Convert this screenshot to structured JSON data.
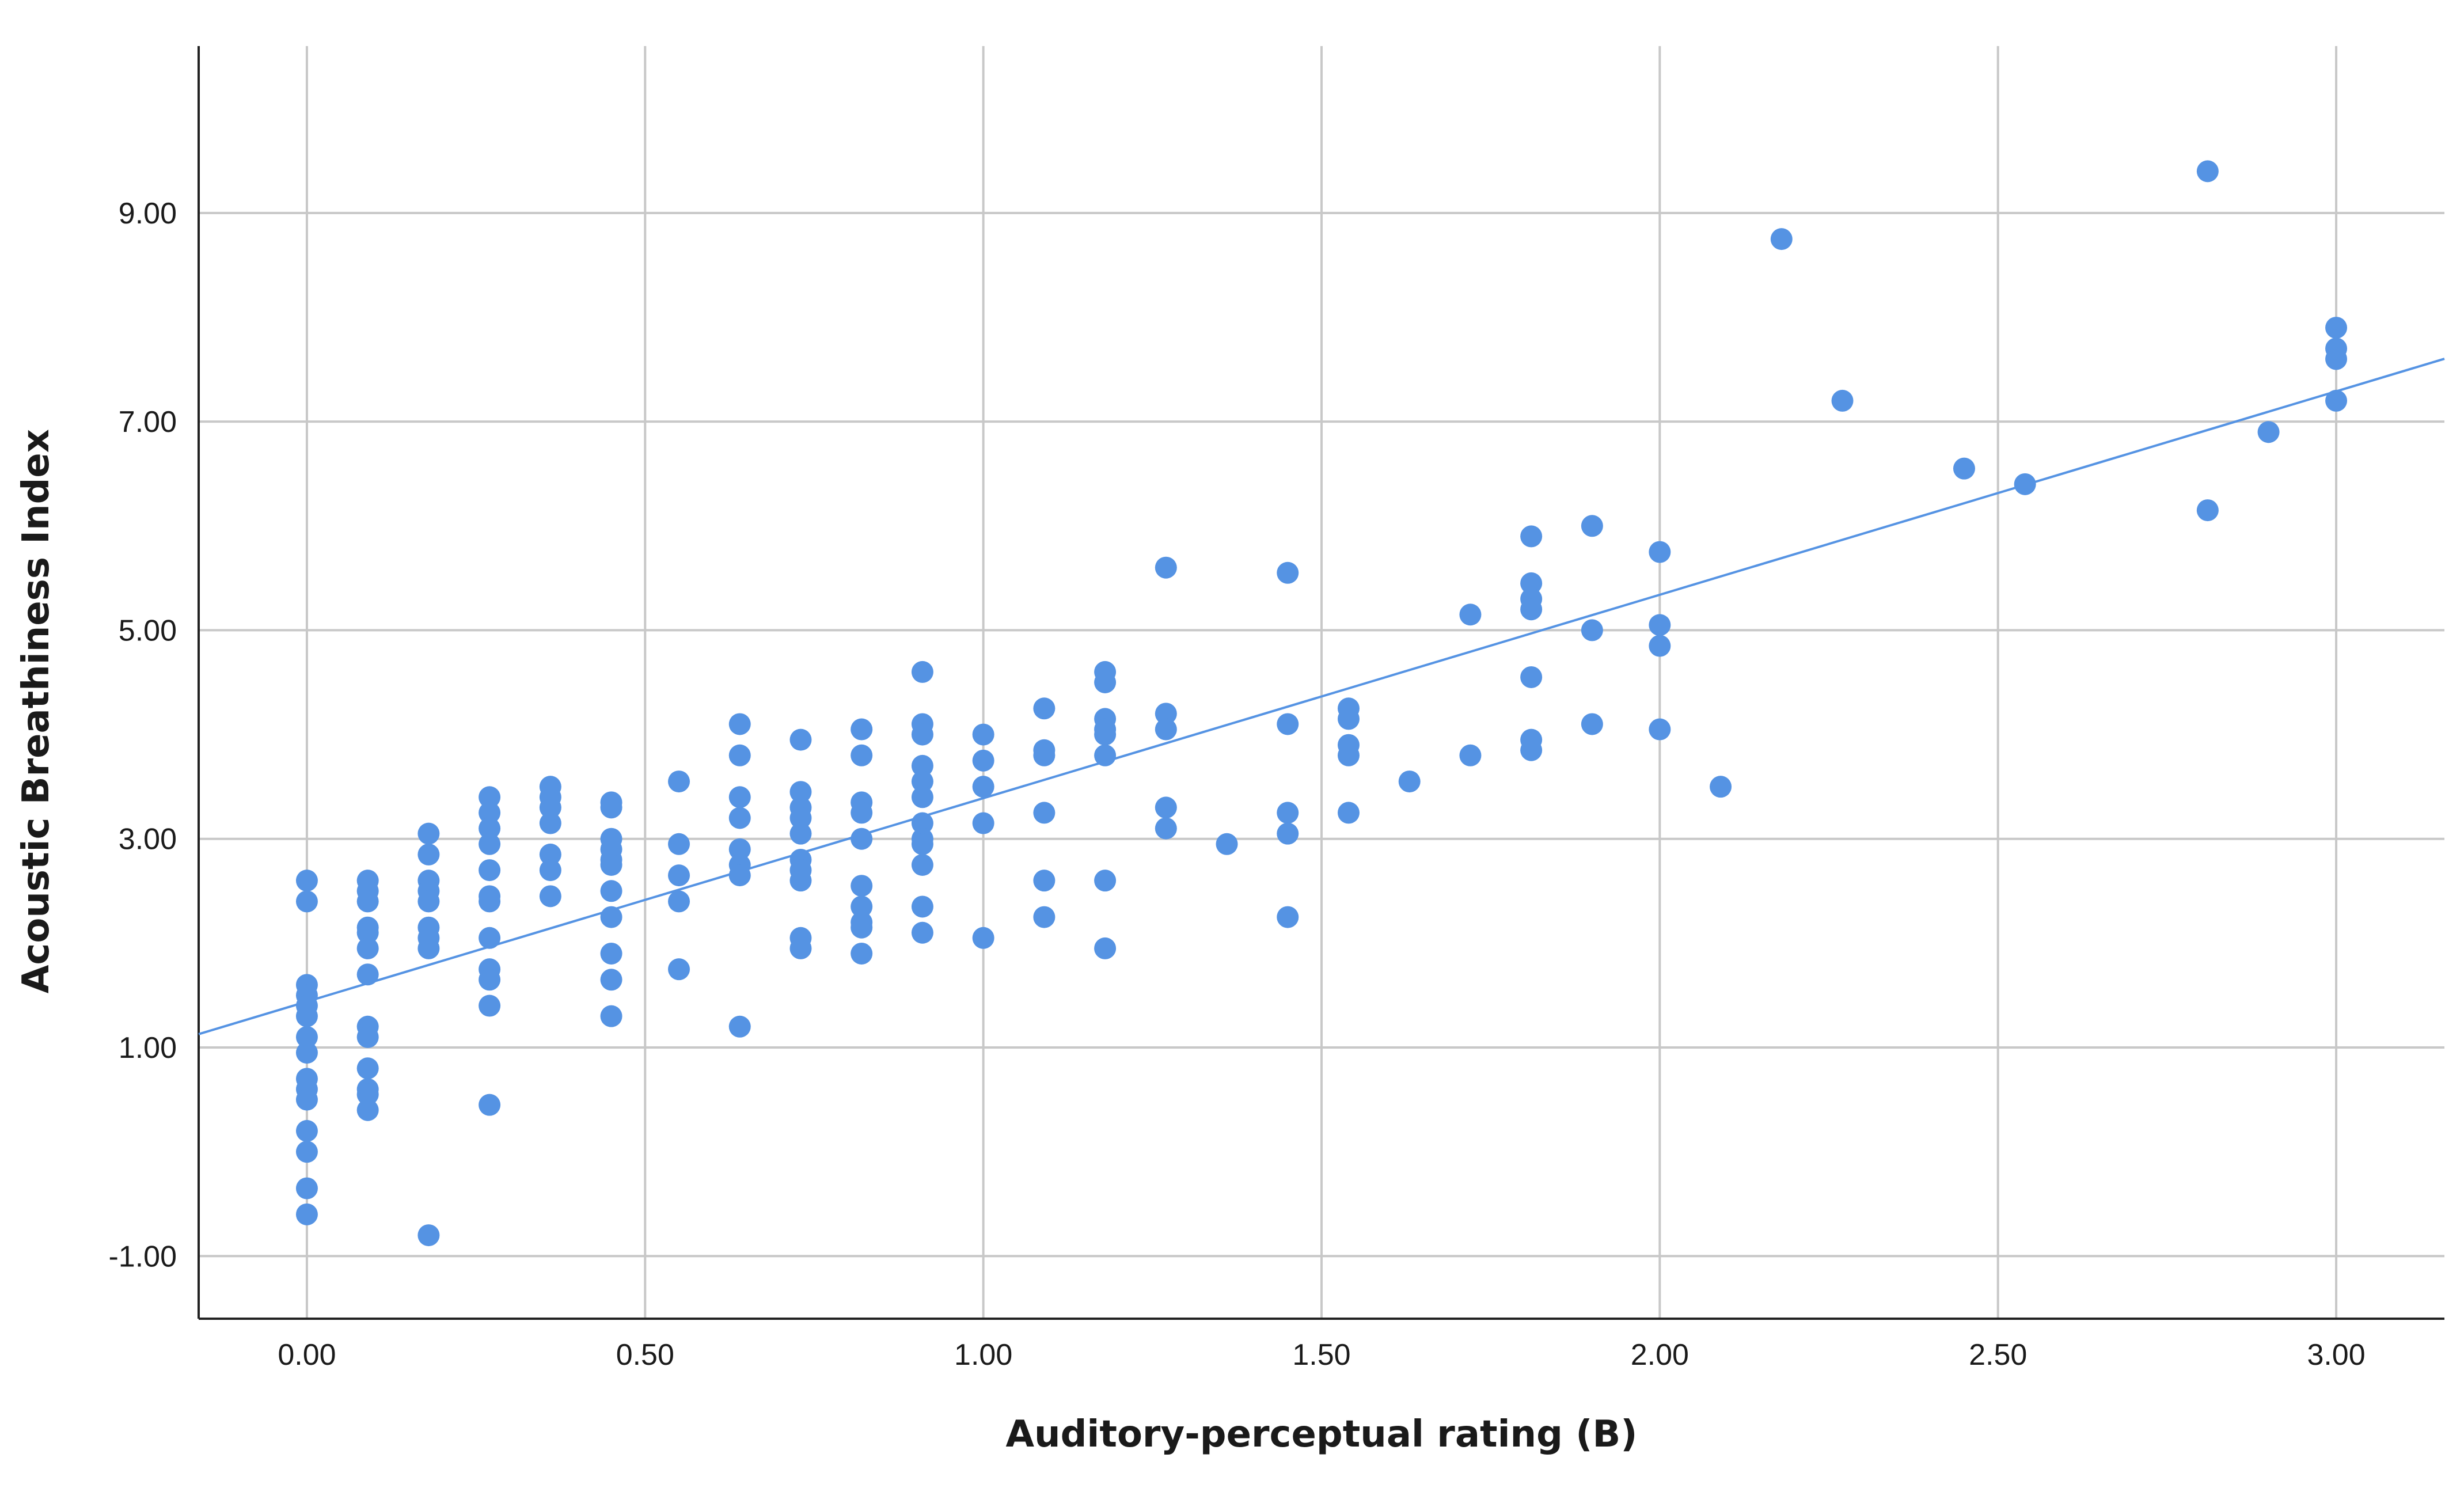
{
  "chart_data": {
    "type": "scatter",
    "xlabel": "Auditory-perceptual rating (B)",
    "ylabel": "Acoustic Breathiness Index",
    "xlim": [
      -0.16,
      3.16
    ],
    "ylim": [
      -1.6,
      10.6
    ],
    "x_ticks": [
      0,
      0.5,
      1,
      1.5,
      2,
      2.5,
      3
    ],
    "x_tick_labels": [
      "0.00",
      "0.50",
      "1.00",
      "1.50",
      "2.00",
      "2.50",
      "3.00"
    ],
    "y_ticks": [
      -1,
      1,
      3,
      5,
      7,
      9
    ],
    "y_tick_labels": [
      "-1.00",
      "1.00",
      "3.00",
      "5.00",
      "7.00",
      "9.00"
    ],
    "grid": "on",
    "colors": {
      "points": "#5593e3",
      "fit_line": "#5593e3",
      "grid": "#c8c8c8",
      "axis": "#222222"
    },
    "fit_line": {
      "intercept": 1.44,
      "slope": 1.95
    },
    "points": [
      [
        0,
        2.6
      ],
      [
        0,
        2.4
      ],
      [
        0,
        1.6
      ],
      [
        0,
        1.5
      ],
      [
        0,
        1.4
      ],
      [
        0,
        1.3
      ],
      [
        0,
        1.1
      ],
      [
        0,
        0.95
      ],
      [
        0,
        0.7
      ],
      [
        0,
        0.6
      ],
      [
        0,
        0.5
      ],
      [
        0,
        0.2
      ],
      [
        0,
        0.0
      ],
      [
        0,
        -0.35
      ],
      [
        0,
        -0.6
      ],
      [
        0.09,
        2.6
      ],
      [
        0.09,
        2.5
      ],
      [
        0.09,
        2.4
      ],
      [
        0.09,
        2.15
      ],
      [
        0.09,
        2.1
      ],
      [
        0.09,
        1.95
      ],
      [
        0.09,
        1.7
      ],
      [
        0.09,
        1.2
      ],
      [
        0.09,
        1.1
      ],
      [
        0.09,
        0.8
      ],
      [
        0.09,
        0.6
      ],
      [
        0.09,
        0.55
      ],
      [
        0.09,
        0.4
      ],
      [
        0.18,
        3.05
      ],
      [
        0.18,
        2.85
      ],
      [
        0.18,
        2.6
      ],
      [
        0.18,
        2.5
      ],
      [
        0.18,
        2.4
      ],
      [
        0.18,
        2.15
      ],
      [
        0.18,
        2.05
      ],
      [
        0.18,
        1.95
      ],
      [
        0.18,
        -0.8
      ],
      [
        0.27,
        3.4
      ],
      [
        0.27,
        3.25
      ],
      [
        0.27,
        3.1
      ],
      [
        0.27,
        2.95
      ],
      [
        0.27,
        2.7
      ],
      [
        0.27,
        2.45
      ],
      [
        0.27,
        2.4
      ],
      [
        0.27,
        2.05
      ],
      [
        0.27,
        1.75
      ],
      [
        0.27,
        1.65
      ],
      [
        0.27,
        1.4
      ],
      [
        0.27,
        0.45
      ],
      [
        0.36,
        3.5
      ],
      [
        0.36,
        3.4
      ],
      [
        0.36,
        3.3
      ],
      [
        0.36,
        3.15
      ],
      [
        0.36,
        2.85
      ],
      [
        0.36,
        2.7
      ],
      [
        0.36,
        2.45
      ],
      [
        0.45,
        3.35
      ],
      [
        0.45,
        3.3
      ],
      [
        0.45,
        3.0
      ],
      [
        0.45,
        2.9
      ],
      [
        0.45,
        2.8
      ],
      [
        0.45,
        2.75
      ],
      [
        0.45,
        2.5
      ],
      [
        0.45,
        2.25
      ],
      [
        0.45,
        1.9
      ],
      [
        0.45,
        1.65
      ],
      [
        0.45,
        1.3
      ],
      [
        0.55,
        3.55
      ],
      [
        0.55,
        2.95
      ],
      [
        0.55,
        2.65
      ],
      [
        0.55,
        2.4
      ],
      [
        0.55,
        1.75
      ],
      [
        0.64,
        4.1
      ],
      [
        0.64,
        3.8
      ],
      [
        0.64,
        3.4
      ],
      [
        0.64,
        3.2
      ],
      [
        0.64,
        2.9
      ],
      [
        0.64,
        2.75
      ],
      [
        0.64,
        2.65
      ],
      [
        0.64,
        1.2
      ],
      [
        0.73,
        3.95
      ],
      [
        0.73,
        3.45
      ],
      [
        0.73,
        3.3
      ],
      [
        0.73,
        3.2
      ],
      [
        0.73,
        3.05
      ],
      [
        0.73,
        2.8
      ],
      [
        0.73,
        2.7
      ],
      [
        0.73,
        2.6
      ],
      [
        0.73,
        2.05
      ],
      [
        0.73,
        1.95
      ],
      [
        0.82,
        4.05
      ],
      [
        0.82,
        3.8
      ],
      [
        0.82,
        3.35
      ],
      [
        0.82,
        3.25
      ],
      [
        0.82,
        3.0
      ],
      [
        0.82,
        2.55
      ],
      [
        0.82,
        2.35
      ],
      [
        0.82,
        2.2
      ],
      [
        0.82,
        2.15
      ],
      [
        0.82,
        1.9
      ],
      [
        0.91,
        4.6
      ],
      [
        0.91,
        4.1
      ],
      [
        0.91,
        4.0
      ],
      [
        0.91,
        3.7
      ],
      [
        0.91,
        3.55
      ],
      [
        0.91,
        3.4
      ],
      [
        0.91,
        3.15
      ],
      [
        0.91,
        3.0
      ],
      [
        0.91,
        2.95
      ],
      [
        0.91,
        2.75
      ],
      [
        0.91,
        2.35
      ],
      [
        0.91,
        2.1
      ],
      [
        1.0,
        4.0
      ],
      [
        1.0,
        3.75
      ],
      [
        1.0,
        3.5
      ],
      [
        1.0,
        3.15
      ],
      [
        1.0,
        2.05
      ],
      [
        1.09,
        4.25
      ],
      [
        1.09,
        3.85
      ],
      [
        1.09,
        3.8
      ],
      [
        1.09,
        3.25
      ],
      [
        1.09,
        2.6
      ],
      [
        1.09,
        2.25
      ],
      [
        1.18,
        4.6
      ],
      [
        1.18,
        4.5
      ],
      [
        1.18,
        4.15
      ],
      [
        1.18,
        4.05
      ],
      [
        1.18,
        4.0
      ],
      [
        1.18,
        3.8
      ],
      [
        1.18,
        2.6
      ],
      [
        1.18,
        1.95
      ],
      [
        1.27,
        5.6
      ],
      [
        1.27,
        4.2
      ],
      [
        1.27,
        4.05
      ],
      [
        1.27,
        3.3
      ],
      [
        1.27,
        3.1
      ],
      [
        1.36,
        2.95
      ],
      [
        1.45,
        5.55
      ],
      [
        1.45,
        4.1
      ],
      [
        1.45,
        3.25
      ],
      [
        1.45,
        3.05
      ],
      [
        1.45,
        2.25
      ],
      [
        1.54,
        4.25
      ],
      [
        1.54,
        4.15
      ],
      [
        1.54,
        3.9
      ],
      [
        1.54,
        3.8
      ],
      [
        1.54,
        3.25
      ],
      [
        1.63,
        3.55
      ],
      [
        1.72,
        5.15
      ],
      [
        1.72,
        3.8
      ],
      [
        1.81,
        5.9
      ],
      [
        1.81,
        5.45
      ],
      [
        1.81,
        5.3
      ],
      [
        1.81,
        5.2
      ],
      [
        1.81,
        4.55
      ],
      [
        1.81,
        3.95
      ],
      [
        1.81,
        3.85
      ],
      [
        1.9,
        6.0
      ],
      [
        1.9,
        5.0
      ],
      [
        1.9,
        4.1
      ],
      [
        2.0,
        5.75
      ],
      [
        2.0,
        5.05
      ],
      [
        2.0,
        4.85
      ],
      [
        2.0,
        4.05
      ],
      [
        2.09,
        3.5
      ],
      [
        2.18,
        8.75
      ],
      [
        2.27,
        7.2
      ],
      [
        2.45,
        6.55
      ],
      [
        2.54,
        6.4
      ],
      [
        2.81,
        9.4
      ],
      [
        2.81,
        6.15
      ],
      [
        2.9,
        6.9
      ],
      [
        3.0,
        7.9
      ],
      [
        3.0,
        7.7
      ],
      [
        3.0,
        7.6
      ],
      [
        3.0,
        7.2
      ]
    ]
  }
}
